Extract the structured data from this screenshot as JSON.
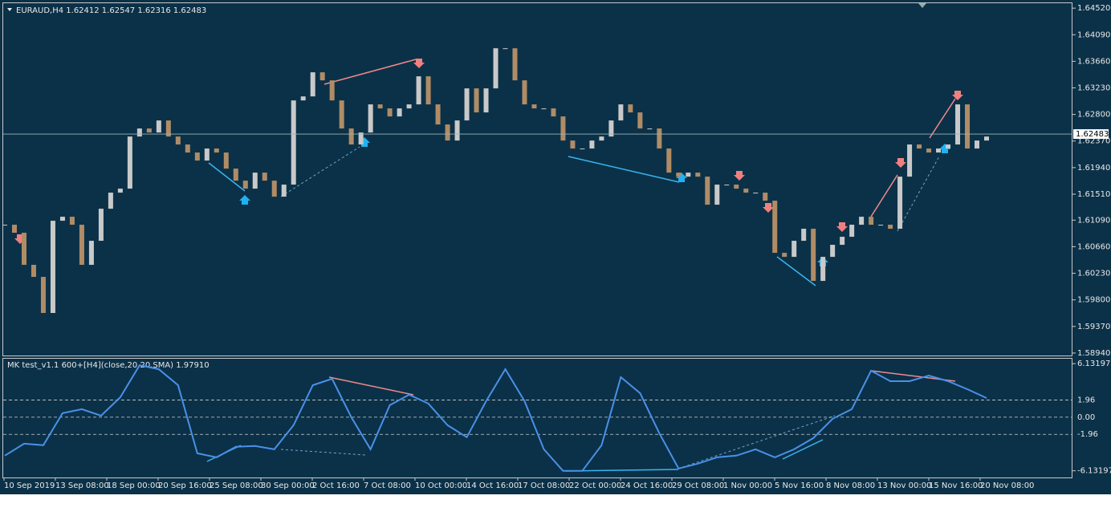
{
  "chart_data": [
    {
      "type": "candlestick",
      "title": "EURAUD,H4  1.62412 1.62547 1.62316 1.62483",
      "close": [
        1.61016,
        1.60886,
        1.60367,
        1.60172,
        1.59588,
        1.6108,
        1.61145,
        1.61016,
        1.60367,
        1.60756,
        1.61275,
        1.61535,
        1.616,
        1.62443,
        1.62573,
        1.62508,
        1.62703,
        1.62443,
        1.62314,
        1.62184,
        1.62054,
        1.62249,
        1.62184,
        1.61924,
        1.61729,
        1.616,
        1.61859,
        1.61729,
        1.6147,
        1.61665,
        1.63027,
        1.63092,
        1.63482,
        1.63352,
        1.63027,
        1.62573,
        1.62314,
        1.62508,
        1.62963,
        1.62898,
        1.62768,
        1.62898,
        1.62963,
        1.63417,
        1.62963,
        1.62638,
        1.62378,
        1.62703,
        1.63222,
        1.62833,
        1.63222,
        1.63871,
        1.63871,
        1.63352,
        1.62963,
        1.62898,
        1.62898,
        1.62768,
        1.62378,
        1.62249,
        1.62249,
        1.62378,
        1.62443,
        1.62703,
        1.62963,
        1.62833,
        1.62573,
        1.62573,
        1.62249,
        1.61859,
        1.61794,
        1.61859,
        1.61794,
        1.6134,
        1.61665,
        1.61665,
        1.616,
        1.61535,
        1.61535,
        1.61405,
        1.60561,
        1.60496,
        1.60756,
        1.60951,
        1.60107,
        1.60496,
        1.60691,
        1.60821,
        1.61016,
        1.61145,
        1.61016,
        1.61016,
        1.60951,
        1.61794,
        1.62314,
        1.62249,
        1.62184,
        1.62249,
        1.62314,
        1.62963,
        1.62249,
        1.62378,
        1.62443
      ],
      "up_color": "#c9c9c9",
      "down_color": "#b08c66",
      "ylim": [
        1.589,
        1.646
      ],
      "yticks": [
        {
          "value": 1.6452,
          "label": "1.64520"
        },
        {
          "value": 1.6409,
          "label": "1.64090"
        },
        {
          "value": 1.6366,
          "label": "1.63660"
        },
        {
          "value": 1.6323,
          "label": "1.63230"
        },
        {
          "value": 1.628,
          "label": "1.62800"
        },
        {
          "value": 1.6237,
          "label": "1.62370"
        },
        {
          "value": 1.6194,
          "label": "1.61940"
        },
        {
          "value": 1.6151,
          "label": "1.61510"
        },
        {
          "value": 1.6109,
          "label": "1.61090"
        },
        {
          "value": 1.6066,
          "label": "1.60660"
        },
        {
          "value": 1.6023,
          "label": "1.60230"
        },
        {
          "value": 1.598,
          "label": "1.59800"
        },
        {
          "value": 1.5937,
          "label": "1.59370"
        },
        {
          "value": 1.5894,
          "label": "1.58940"
        }
      ],
      "last_price": 1.62483
    },
    {
      "type": "line",
      "title": "MK test_v1.1 600+[H4](close,20,20,SMA) 1.97910",
      "color": "#4a90e8",
      "values": [
        -4.4,
        -3.03,
        -3.21,
        0.46,
        0.92,
        0.18,
        2.29,
        5.96,
        5.5,
        3.67,
        -4.13,
        -4.59,
        -3.39,
        -3.3,
        -3.67,
        -0.92,
        3.67,
        4.4,
        0.0,
        -3.67,
        1.38,
        2.57,
        1.56,
        -0.92,
        -2.29,
        1.83,
        5.5,
        1.83,
        -3.67,
        -6.15,
        -6.15,
        -3.21,
        4.59,
        2.75,
        -1.83,
        -5.87,
        -5.32,
        -4.59,
        -4.4,
        -3.67,
        -4.59,
        -3.67,
        -2.39,
        -0.18,
        0.92,
        5.32,
        4.13,
        4.13,
        4.77,
        4.13,
        3.21,
        2.2
      ],
      "ylim": [
        -6.9,
        6.7
      ],
      "yticks": [
        6.13197,
        1.96,
        {
          "value": 0,
          "label": "0.00"
        },
        -1.96,
        -6.13197
      ]
    }
  ],
  "time_axis": [
    "10 Sep 2019",
    "13 Sep 08:00",
    "18 Sep 00:00",
    "20 Sep 16:00",
    "25 Sep 08:00",
    "30 Sep 00:00",
    "2 Oct 16:00",
    "7 Oct 08:00",
    "10 Oct 00:00",
    "14 Oct 16:00",
    "17 Oct 08:00",
    "22 Oct 00:00",
    "24 Oct 16:00",
    "29 Oct 08:00",
    "1 Nov 00:00",
    "5 Nov 16:00",
    "8 Nov 08:00",
    "13 Nov 00:00",
    "15 Nov 16:00",
    "20 Nov 08:00"
  ]
}
